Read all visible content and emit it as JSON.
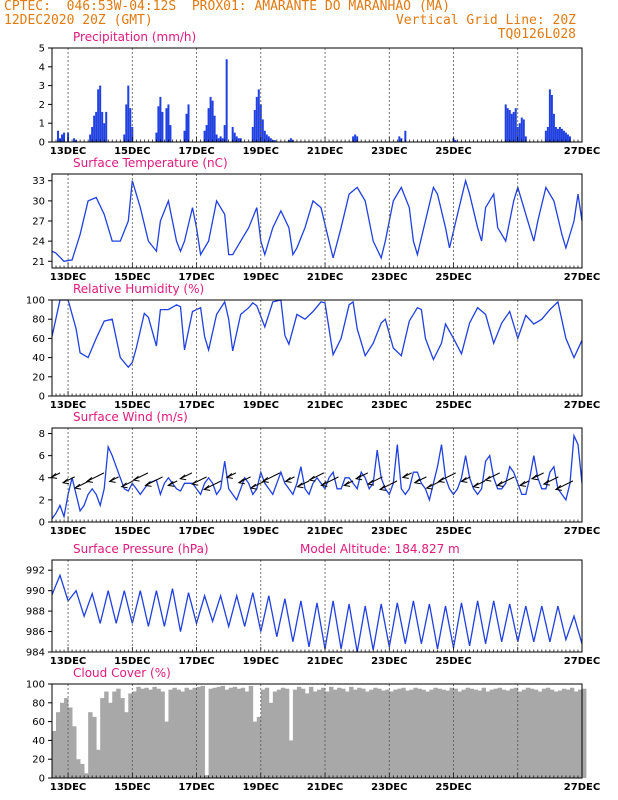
{
  "header": {
    "line1_left": "CPTEC:  046:53W-04:12S  PROX01: AMARANTE DO MARANHAO (MA)",
    "line2_left": "12DEC2020 20Z (GMT)",
    "line2_right": "Vertical Grid Line: 20Z",
    "line3_right": "TQ0126L028"
  },
  "colors": {
    "header": "#e07a10",
    "title": "#e0197d",
    "line": "#2040e0",
    "bar": "#2040e0",
    "cloud": "#a8a8a8"
  },
  "x_ticks": [
    "13DEC",
    "15DEC",
    "17DEC",
    "19DEC",
    "21DEC",
    "23DEC",
    "25DEC",
    "27DEC"
  ],
  "chart_data": [
    {
      "type": "bar",
      "title": "Precipitation  (mm/h)",
      "ylim": [
        0,
        5
      ],
      "yticks": [
        0,
        1,
        2,
        3,
        4,
        5
      ],
      "x": [
        3,
        4,
        5,
        6,
        8,
        11,
        12,
        19,
        20,
        21,
        22,
        23,
        24,
        25,
        26,
        27,
        36,
        37,
        38,
        39,
        40,
        52,
        53,
        54,
        55,
        57,
        58,
        59,
        66,
        67,
        68,
        76,
        77,
        78,
        79,
        80,
        81,
        82,
        83,
        84,
        85,
        86,
        87,
        90,
        91,
        92,
        93,
        94,
        100,
        101,
        102,
        103,
        104,
        105,
        106,
        107,
        108,
        109,
        110,
        111,
        118,
        119,
        120,
        150,
        151,
        152,
        173,
        174,
        176,
        200,
        201,
        226,
        227,
        228,
        229,
        230,
        231,
        232,
        233,
        234,
        235,
        236,
        246,
        247,
        248,
        249,
        250,
        251,
        252,
        253,
        254,
        255,
        256,
        257,
        258
      ],
      "values": [
        0.6,
        0.2,
        0.4,
        0.5,
        0.5,
        0.2,
        0.1,
        0.4,
        0.8,
        1.4,
        1.6,
        2.8,
        3.0,
        1.6,
        1.0,
        1.6,
        0.4,
        2.0,
        3.0,
        1.8,
        0.8,
        0.5,
        1.9,
        2.4,
        1.6,
        1.8,
        2.0,
        0.9,
        0.6,
        1.5,
        2.0,
        0.6,
        0.9,
        1.8,
        2.4,
        2.2,
        1.4,
        0.4,
        0.2,
        0.3,
        0.2,
        0.9,
        4.4,
        0.8,
        0.5,
        0.3,
        0.2,
        0.2,
        0.8,
        1.7,
        2.4,
        2.8,
        2.0,
        1.2,
        0.6,
        0.4,
        0.3,
        0.2,
        0.1,
        0.1,
        0.1,
        0.2,
        0.1,
        0.3,
        0.4,
        0.3,
        0.3,
        0.2,
        0.6,
        0.2,
        0.1,
        2.0,
        1.8,
        1.7,
        1.5,
        1.6,
        1.8,
        0.8,
        1.0,
        1.3,
        1.2,
        0.3,
        0.6,
        0.8,
        2.8,
        2.5,
        1.5,
        0.8,
        0.7,
        0.8,
        0.7,
        0.6,
        0.5,
        0.4,
        0.3
      ]
    },
    {
      "type": "line",
      "title": "Surface Temperature  (nC)",
      "ylim": [
        20,
        34
      ],
      "yticks": [
        21,
        24,
        27,
        30,
        33
      ],
      "x": [
        0,
        2,
        6,
        10,
        14,
        18,
        22,
        26,
        30,
        34,
        38,
        40,
        44,
        48,
        52,
        54,
        58,
        62,
        64,
        66,
        70,
        72,
        74,
        78,
        82,
        86,
        88,
        90,
        94,
        98,
        102,
        104,
        106,
        110,
        114,
        118,
        120,
        122,
        126,
        130,
        134,
        138,
        140,
        144,
        148,
        152,
        156,
        160,
        164,
        166,
        170,
        174,
        178,
        180,
        182,
        186,
        190,
        192,
        196,
        198,
        202,
        206,
        208,
        212,
        214,
        216,
        220,
        222,
        226,
        230,
        232,
        236,
        240,
        242,
        246,
        250,
        254,
        256,
        260,
        262,
        264
      ],
      "y": [
        22.5,
        22.2,
        21,
        21.2,
        25,
        30,
        30.5,
        28,
        24,
        24,
        27,
        33,
        29,
        24,
        22.5,
        27,
        30,
        24,
        22.5,
        24,
        29,
        26,
        22,
        24,
        30,
        28,
        22,
        22,
        24,
        26,
        29,
        24,
        22,
        26,
        28.5,
        26,
        22,
        23,
        26,
        30,
        29,
        24,
        21.5,
        26,
        31,
        32,
        30,
        24,
        21.5,
        24,
        30,
        32,
        29,
        24,
        22,
        27,
        32,
        31,
        26,
        23,
        28,
        33,
        31,
        26,
        24,
        29,
        31,
        26,
        24,
        30,
        32,
        28,
        24,
        27,
        32,
        30,
        25,
        23,
        27,
        31,
        27
      ]
    },
    {
      "type": "line",
      "title": "Relative Humidity  (%)",
      "ylim": [
        0,
        100
      ],
      "yticks": [
        0,
        20,
        40,
        60,
        80,
        100
      ],
      "x": [
        0,
        4,
        8,
        12,
        14,
        18,
        22,
        26,
        30,
        34,
        38,
        40,
        42,
        46,
        48,
        52,
        54,
        58,
        62,
        64,
        66,
        70,
        74,
        76,
        78,
        82,
        86,
        88,
        90,
        94,
        98,
        100,
        102,
        106,
        110,
        114,
        116,
        118,
        122,
        126,
        130,
        134,
        136,
        140,
        144,
        148,
        150,
        152,
        156,
        160,
        164,
        166,
        170,
        174,
        178,
        182,
        184,
        186,
        190,
        194,
        196,
        200,
        204,
        208,
        212,
        216,
        220,
        224,
        228,
        232,
        236,
        240,
        244,
        248,
        252,
        256,
        260,
        264
      ],
      "y": [
        62,
        100,
        100,
        70,
        45,
        40,
        60,
        78,
        80,
        40,
        30,
        35,
        50,
        86,
        82,
        52,
        90,
        90,
        95,
        93,
        48,
        88,
        92,
        62,
        48,
        85,
        98,
        80,
        47,
        85,
        92,
        97,
        94,
        72,
        98,
        100,
        63,
        54,
        85,
        80,
        88,
        98,
        97,
        43,
        60,
        95,
        98,
        70,
        42,
        55,
        76,
        80,
        50,
        42,
        78,
        92,
        90,
        60,
        38,
        55,
        75,
        60,
        44,
        76,
        92,
        85,
        55,
        76,
        88,
        60,
        84,
        75,
        80,
        90,
        98,
        60,
        40,
        58
      ]
    },
    {
      "type": "line",
      "title": "Surface Wind  (m/s)",
      "ylim": [
        0,
        8.5
      ],
      "yticks": [
        0,
        2,
        4,
        6,
        8
      ],
      "x": [
        0,
        2,
        4,
        6,
        8,
        10,
        12,
        14,
        16,
        18,
        20,
        22,
        24,
        26,
        28,
        30,
        32,
        36,
        38,
        40,
        42,
        44,
        46,
        48,
        52,
        54,
        56,
        58,
        62,
        64,
        66,
        70,
        72,
        74,
        76,
        78,
        80,
        82,
        84,
        86,
        88,
        90,
        92,
        94,
        96,
        98,
        100,
        102,
        104,
        106,
        108,
        110,
        112,
        114,
        116,
        118,
        120,
        122,
        124,
        126,
        128,
        130,
        132,
        134,
        136,
        138,
        140,
        142,
        144,
        146,
        148,
        150,
        152,
        154,
        156,
        158,
        160,
        162,
        164,
        166,
        168,
        170,
        172,
        174,
        176,
        178,
        180,
        182,
        184,
        186,
        188,
        190,
        192,
        194,
        196,
        198,
        200,
        202,
        204,
        206,
        208,
        210,
        212,
        214,
        216,
        218,
        220,
        222,
        224,
        226,
        228,
        230,
        232,
        234,
        236,
        238,
        240,
        242,
        244,
        246,
        248,
        250,
        252,
        254,
        256,
        258,
        260,
        262,
        264
      ],
      "y": [
        0.3,
        0.8,
        1.5,
        0.5,
        2.5,
        4.0,
        2.5,
        1.0,
        1.5,
        2.5,
        3.0,
        2.5,
        1.5,
        3.0,
        6.8,
        6.0,
        5.0,
        3.0,
        2.8,
        3.5,
        3.0,
        2.5,
        3.0,
        3.5,
        3.8,
        2.5,
        3.5,
        4.0,
        3.0,
        2.8,
        3.5,
        3.5,
        3.0,
        2.5,
        3.5,
        4.0,
        3.5,
        2.5,
        3.0,
        5.5,
        3.0,
        2.5,
        2.0,
        3.0,
        4.0,
        3.5,
        2.5,
        3.0,
        4.5,
        3.5,
        3.0,
        2.5,
        3.5,
        4.5,
        3.5,
        3.0,
        2.5,
        3.5,
        5.0,
        3.0,
        2.5,
        3.5,
        4.0,
        3.5,
        3.0,
        4.0,
        4.5,
        3.0,
        3.0,
        4.0,
        4.0,
        3.5,
        3.0,
        4.5,
        4.0,
        3.0,
        3.5,
        6.5,
        4.0,
        3.0,
        2.5,
        3.5,
        7.0,
        3.0,
        2.5,
        3.0,
        4.5,
        4.5,
        3.5,
        3.0,
        2.0,
        3.5,
        5.0,
        7.0,
        4.0,
        3.0,
        2.5,
        3.0,
        4.0,
        6.0,
        4.0,
        3.0,
        2.5,
        3.0,
        5.5,
        6.0,
        4.0,
        3.0,
        3.0,
        3.5,
        5.0,
        4.5,
        3.5,
        2.5,
        2.5,
        4.0,
        6.0,
        4.0,
        3.0,
        3.0,
        4.5,
        5.0,
        3.0,
        2.5,
        2.0,
        3.5,
        7.8,
        7.0,
        3.5
      ]
    },
    {
      "type": "line",
      "title": "Surface Pressure  (hPa)",
      "subtitle": "Model Altitude: 184.827  m",
      "ylim": [
        984,
        993
      ],
      "yticks": [
        984,
        986,
        988,
        990,
        992
      ],
      "x": [
        0,
        4,
        8,
        12,
        16,
        20,
        24,
        28,
        32,
        36,
        40,
        44,
        48,
        52,
        56,
        60,
        64,
        68,
        72,
        76,
        80,
        84,
        88,
        92,
        96,
        100,
        104,
        108,
        112,
        116,
        120,
        124,
        128,
        132,
        136,
        140,
        144,
        148,
        152,
        156,
        160,
        164,
        168,
        172,
        176,
        180,
        184,
        188,
        192,
        196,
        200,
        204,
        208,
        212,
        216,
        220,
        224,
        228,
        232,
        236,
        240,
        244,
        248,
        252,
        256,
        260,
        264
      ],
      "y": [
        989.6,
        991.5,
        989,
        990,
        987.5,
        989.7,
        986.8,
        990,
        986.8,
        990,
        986.8,
        990,
        986.5,
        990,
        986.5,
        990.2,
        986,
        989.8,
        986.8,
        989.5,
        987,
        989.5,
        986.5,
        989.5,
        986.5,
        989.8,
        986,
        989.5,
        985.5,
        989.2,
        985,
        989,
        984.5,
        988.8,
        984.3,
        989,
        984.3,
        988.7,
        984,
        988.5,
        984.2,
        988.7,
        984.5,
        988.8,
        984.8,
        989,
        984.8,
        988.7,
        984.3,
        988.5,
        984.4,
        988.8,
        984.6,
        989,
        984.8,
        989,
        985,
        988.7,
        985,
        988.5,
        985,
        988.5,
        985,
        988.5,
        985.2,
        987.5,
        984.8
      ]
    },
    {
      "type": "bar",
      "title": "Cloud Cover  (%)",
      "ylim": [
        0,
        100
      ],
      "yticks": [
        0,
        20,
        40,
        60,
        80,
        100
      ],
      "x": [
        0,
        2,
        4,
        6,
        8,
        10,
        12,
        14,
        16,
        18,
        20,
        22,
        24,
        26,
        28,
        30,
        32,
        34,
        36,
        38,
        40,
        42,
        44,
        46,
        48,
        50,
        52,
        54,
        56,
        58,
        60,
        62,
        64,
        66,
        68,
        70,
        72,
        74,
        76,
        78,
        80,
        82,
        84,
        86,
        88,
        90,
        92,
        94,
        96,
        98,
        100,
        102,
        104,
        106,
        108,
        110,
        112,
        114,
        116,
        118,
        120,
        122,
        124,
        126,
        128,
        130,
        132,
        134,
        136,
        138,
        140,
        142,
        144,
        146,
        148,
        150,
        152,
        154,
        156,
        158,
        160,
        162,
        164,
        166,
        168,
        170,
        172,
        174,
        176,
        178,
        180,
        182,
        184,
        186,
        188,
        190,
        192,
        194,
        196,
        198,
        200,
        202,
        204,
        206,
        208,
        210,
        212,
        214,
        216,
        218,
        220,
        222,
        224,
        226,
        228,
        230,
        232,
        234,
        236,
        238,
        240,
        242,
        244,
        246,
        248,
        250,
        252,
        254,
        256,
        258,
        260,
        262,
        264
      ],
      "values": [
        50,
        70,
        80,
        85,
        75,
        55,
        20,
        15,
        5,
        70,
        65,
        30,
        85,
        92,
        80,
        92,
        95,
        85,
        70,
        90,
        92,
        97,
        95,
        96,
        94,
        97,
        95,
        92,
        60,
        94,
        96,
        94,
        92,
        96,
        94,
        96,
        97,
        98,
        3,
        95,
        96,
        97,
        98,
        94,
        96,
        97,
        95,
        96,
        92,
        98,
        60,
        65,
        94,
        96,
        80,
        92,
        94,
        96,
        95,
        40,
        94,
        97,
        95,
        90,
        97,
        92,
        94,
        96,
        92,
        97,
        94,
        96,
        95,
        92,
        97,
        94,
        96,
        95,
        92,
        94,
        96,
        95,
        93,
        94,
        92,
        94,
        95,
        96,
        93,
        94,
        96,
        95,
        94,
        92,
        94,
        96,
        95,
        94,
        93,
        96,
        95,
        92,
        94,
        96,
        95,
        94,
        93,
        96,
        92,
        94,
        95,
        96,
        94,
        93,
        95,
        96,
        92,
        94,
        96,
        95,
        94,
        92,
        95,
        96,
        94,
        92,
        93,
        95,
        94,
        96,
        92,
        94,
        95
      ]
    }
  ]
}
